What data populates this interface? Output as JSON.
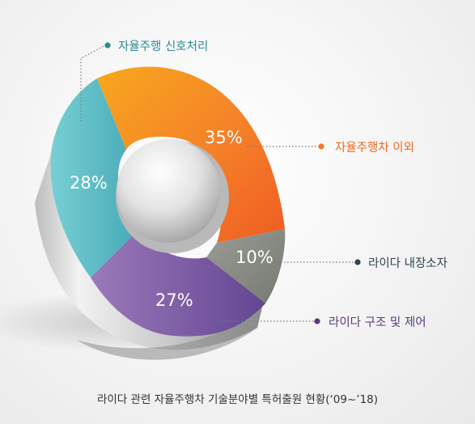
{
  "chart_data": {
    "type": "pie",
    "title": "라이다 관련 자율주행차 기술분야별 특허출원 현황(‘09~’18)",
    "slices": [
      {
        "label": "자율주행차 이외",
        "value": 35,
        "display": "35%",
        "color": "#f47a25",
        "label_color": "#ef6a1c"
      },
      {
        "label": "라이다 내장소자",
        "value": 10,
        "display": "10%",
        "color": "#8e9189",
        "label_color": "#2f4552"
      },
      {
        "label": "라이다 구조 및 제어",
        "value": 27,
        "display": "27%",
        "color": "#7e5ba3",
        "label_color": "#5a3a78"
      },
      {
        "label": "자율주행 신호처리",
        "value": 28,
        "display": "28%",
        "color": "#57bcc6",
        "label_color": "#2b8a93"
      }
    ]
  }
}
